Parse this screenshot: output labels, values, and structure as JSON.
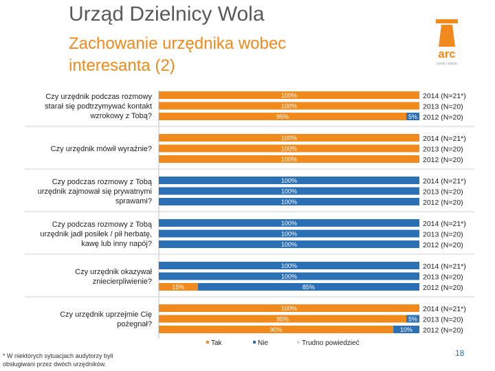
{
  "header": {
    "title": "Urząd Dzielnicy Wola",
    "subtitle": "Zachowanie urzędnika wobec interesanta (2)"
  },
  "logo": {
    "text": "arc",
    "caption": "rynek i opinia"
  },
  "chart_data": {
    "type": "bar",
    "orientation": "horizontal",
    "stacked": true,
    "xlim": [
      0,
      100
    ],
    "unit": "%",
    "series_names": [
      "Tak",
      "Nie",
      "Trudno powiedzieć"
    ],
    "colors": {
      "tak": "#f08a1c",
      "nie": "#2b6fb5",
      "trudno": "#d7d7d7"
    },
    "questions": [
      {
        "label": [
          "Czy urzędnik podczas rozmowy",
          "starał się podtrzymywać kontakt",
          "wzrokowy z Tobą?"
        ],
        "bars": [
          {
            "year": "2014 (N=21*)",
            "tak": 100,
            "nie": 0,
            "tak_label": "100%",
            "nie_label": ""
          },
          {
            "year": "2013 (N=20)",
            "tak": 100,
            "nie": 0,
            "tak_label": "100%",
            "nie_label": ""
          },
          {
            "year": "2012 (N=20)",
            "tak": 95,
            "nie": 5,
            "tak_label": "95%",
            "nie_label": "5%"
          }
        ]
      },
      {
        "label": [
          "Czy urzędnik mówił wyraźnie?"
        ],
        "bars": [
          {
            "year": "2014 (N=21*)",
            "tak": 100,
            "nie": 0,
            "tak_label": "100%",
            "nie_label": ""
          },
          {
            "year": "2013 (N=20)",
            "tak": 100,
            "nie": 0,
            "tak_label": "100%",
            "nie_label": ""
          },
          {
            "year": "2012 (N=20)",
            "tak": 100,
            "nie": 0,
            "tak_label": "100%",
            "nie_label": ""
          }
        ]
      },
      {
        "label": [
          "Czy podczas rozmowy z Tobą",
          "urzędnik zajmował się prywatnymi",
          "sprawami?"
        ],
        "bars": [
          {
            "year": "2014 (N=21*)",
            "tak": 0,
            "nie": 100,
            "tak_label": "",
            "nie_label": "100%"
          },
          {
            "year": "2013 (N=20)",
            "tak": 0,
            "nie": 100,
            "tak_label": "",
            "nie_label": "100%"
          },
          {
            "year": "2012 (N=20)",
            "tak": 0,
            "nie": 100,
            "tak_label": "",
            "nie_label": "100%"
          }
        ]
      },
      {
        "label": [
          "Czy podczas rozmowy z Tobą",
          "urzędnik jadł posiłek / pił herbatę,",
          "kawę lub inny napój?"
        ],
        "bars": [
          {
            "year": "2014 (N=21*)",
            "tak": 0,
            "nie": 100,
            "tak_label": "",
            "nie_label": "100%"
          },
          {
            "year": "2013 (N=20)",
            "tak": 0,
            "nie": 100,
            "tak_label": "",
            "nie_label": "100%"
          },
          {
            "year": "2012 (N=20)",
            "tak": 0,
            "nie": 100,
            "tak_label": "",
            "nie_label": "100%"
          }
        ]
      },
      {
        "label": [
          "Czy urzędnik okazywał",
          "zniecierpliwienie?"
        ],
        "bars": [
          {
            "year": "2014 (N=21*)",
            "tak": 0,
            "nie": 100,
            "tak_label": "",
            "nie_label": "100%"
          },
          {
            "year": "2013 (N=20)",
            "tak": 0,
            "nie": 100,
            "tak_label": "",
            "nie_label": "100%"
          },
          {
            "year": "2012 (N=20)",
            "tak": 15,
            "nie": 85,
            "tak_label": "15%",
            "nie_label": "85%"
          }
        ]
      },
      {
        "label": [
          "Czy urzędnik uprzejmie Cię",
          "pożegnał?"
        ],
        "bars": [
          {
            "year": "2014 (N=21*)",
            "tak": 100,
            "nie": 0,
            "tak_label": "100%",
            "nie_label": ""
          },
          {
            "year": "2013 (N=20)",
            "tak": 95,
            "nie": 5,
            "tak_label": "95%",
            "nie_label": "5%"
          },
          {
            "year": "2012 (N=20)",
            "tak": 90,
            "nie": 10,
            "tak_label": "90%",
            "nie_label": "10%"
          }
        ]
      }
    ]
  },
  "legend": {
    "items": [
      "Tak",
      "Nie",
      "Trudno powiedzieć"
    ]
  },
  "footnote": "* W niektórych sytuacjach audytorzy byli obsługiwani przez dwóch urzędników.",
  "page_number": "18"
}
